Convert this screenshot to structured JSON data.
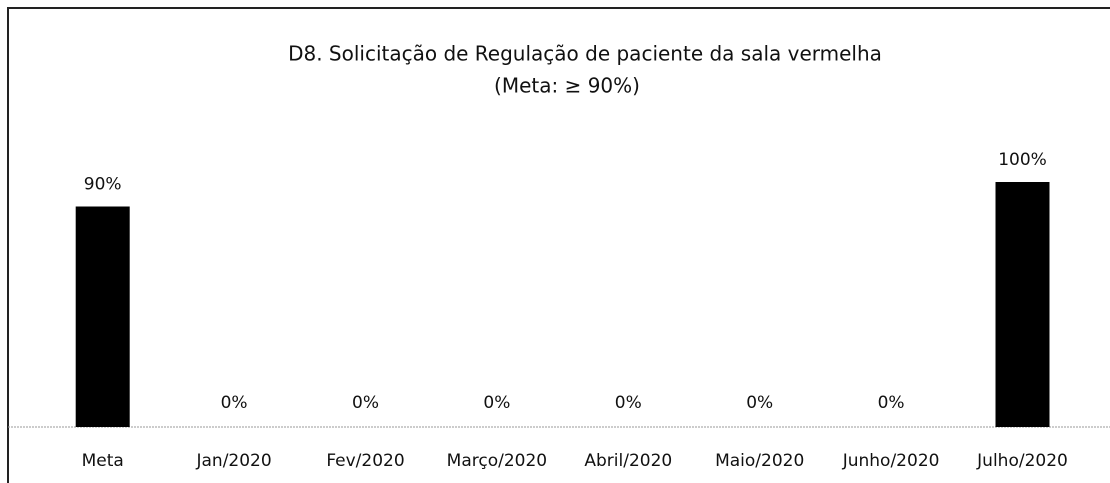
{
  "chart_data": {
    "type": "bar",
    "title": "D8. Solicitação de Regulação de paciente da sala vermelha",
    "subtitle": "(Meta: ≥ 90%)",
    "categories": [
      "Meta",
      "Jan/2020",
      "Fev/2020",
      "Março/2020",
      "Abril/2020",
      "Maio/2020",
      "Junho/2020",
      "Julho/2020"
    ],
    "values": [
      90,
      0,
      0,
      0,
      0,
      0,
      0,
      100
    ],
    "value_labels": [
      "90%",
      "0%",
      "0%",
      "0%",
      "0%",
      "0%",
      "0%",
      "100%"
    ],
    "color": "#000000"
  }
}
